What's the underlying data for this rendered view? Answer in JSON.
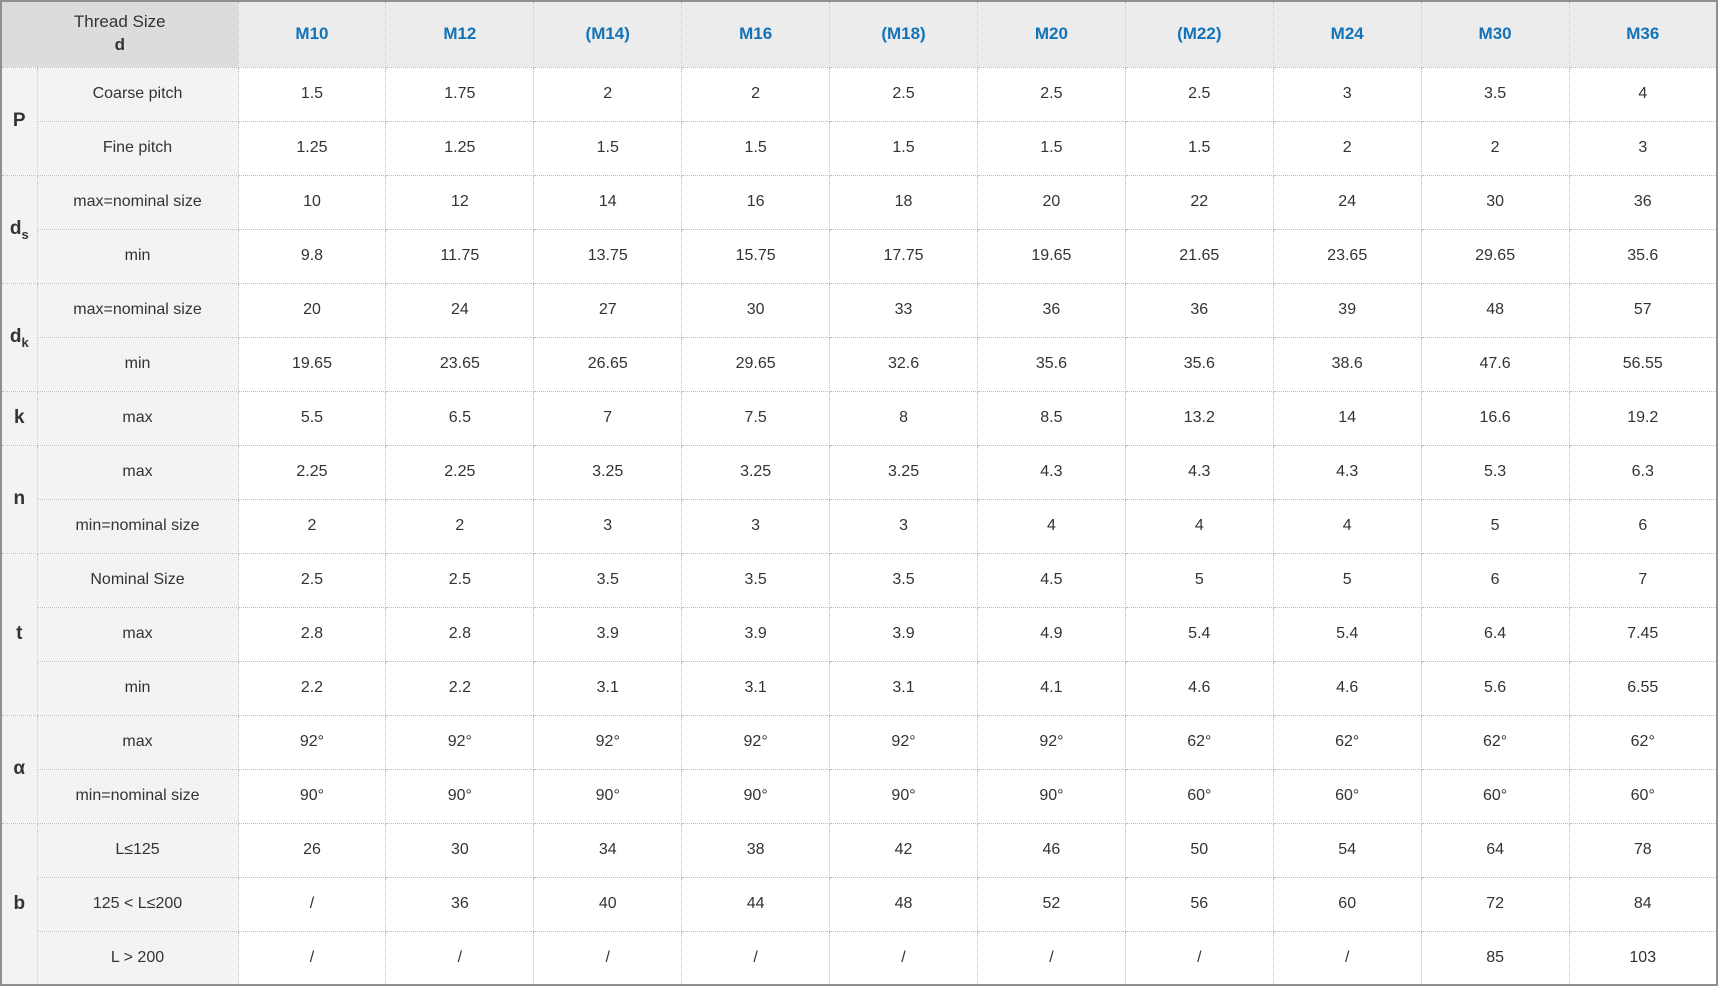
{
  "style": {
    "accent": "#1273b9",
    "header_bg": "#ececec",
    "corner_bg": "#dcdcdc",
    "label_bg": "#f3f3f3",
    "border_inner": "#bdbdbd",
    "border_outer": "#8f8f8f",
    "text": "#333333"
  },
  "chart_data": {
    "type": "table",
    "corner_header_line1": "Thread Size",
    "corner_header_line2": "d",
    "columns": [
      "M10",
      "M12",
      "(M14)",
      "M16",
      "(M18)",
      "M20",
      "(M22)",
      "M24",
      "M30",
      "M36"
    ],
    "row_groups": [
      {
        "id": "P",
        "symbol": "P",
        "symbol_sub": "",
        "rows": [
          {
            "label": "Coarse pitch",
            "values": [
              "1.5",
              "1.75",
              "2",
              "2",
              "2.5",
              "2.5",
              "2.5",
              "3",
              "3.5",
              "4"
            ]
          },
          {
            "label": "Fine pitch",
            "values": [
              "1.25",
              "1.25",
              "1.5",
              "1.5",
              "1.5",
              "1.5",
              "1.5",
              "2",
              "2",
              "3"
            ]
          }
        ]
      },
      {
        "id": "ds",
        "symbol": "d",
        "symbol_sub": "s",
        "rows": [
          {
            "label": "max=nominal size",
            "values": [
              "10",
              "12",
              "14",
              "16",
              "18",
              "20",
              "22",
              "24",
              "30",
              "36"
            ]
          },
          {
            "label": "min",
            "values": [
              "9.8",
              "11.75",
              "13.75",
              "15.75",
              "17.75",
              "19.65",
              "21.65",
              "23.65",
              "29.65",
              "35.6"
            ]
          }
        ]
      },
      {
        "id": "dk",
        "symbol": "d",
        "symbol_sub": "k",
        "rows": [
          {
            "label": "max=nominal size",
            "values": [
              "20",
              "24",
              "27",
              "30",
              "33",
              "36",
              "36",
              "39",
              "48",
              "57"
            ]
          },
          {
            "label": "min",
            "values": [
              "19.65",
              "23.65",
              "26.65",
              "29.65",
              "32.6",
              "35.6",
              "35.6",
              "38.6",
              "47.6",
              "56.55"
            ]
          }
        ]
      },
      {
        "id": "k",
        "symbol": "k",
        "symbol_sub": "",
        "rows": [
          {
            "label": "max",
            "values": [
              "5.5",
              "6.5",
              "7",
              "7.5",
              "8",
              "8.5",
              "13.2",
              "14",
              "16.6",
              "19.2"
            ]
          }
        ]
      },
      {
        "id": "n",
        "symbol": "n",
        "symbol_sub": "",
        "rows": [
          {
            "label": "max",
            "values": [
              "2.25",
              "2.25",
              "3.25",
              "3.25",
              "3.25",
              "4.3",
              "4.3",
              "4.3",
              "5.3",
              "6.3"
            ]
          },
          {
            "label": "min=nominal size",
            "values": [
              "2",
              "2",
              "3",
              "3",
              "3",
              "4",
              "4",
              "4",
              "5",
              "6"
            ]
          }
        ]
      },
      {
        "id": "t",
        "symbol": "t",
        "symbol_sub": "",
        "rows": [
          {
            "label": "Nominal Size",
            "values": [
              "2.5",
              "2.5",
              "3.5",
              "3.5",
              "3.5",
              "4.5",
              "5",
              "5",
              "6",
              "7"
            ]
          },
          {
            "label": "max",
            "values": [
              "2.8",
              "2.8",
              "3.9",
              "3.9",
              "3.9",
              "4.9",
              "5.4",
              "5.4",
              "6.4",
              "7.45"
            ]
          },
          {
            "label": "min",
            "values": [
              "2.2",
              "2.2",
              "3.1",
              "3.1",
              "3.1",
              "4.1",
              "4.6",
              "4.6",
              "5.6",
              "6.55"
            ]
          }
        ]
      },
      {
        "id": "alpha",
        "symbol": "α",
        "symbol_sub": "",
        "rows": [
          {
            "label": "max",
            "values": [
              "92°",
              "92°",
              "92°",
              "92°",
              "92°",
              "92°",
              "62°",
              "62°",
              "62°",
              "62°"
            ]
          },
          {
            "label": "min=nominal size",
            "values": [
              "90°",
              "90°",
              "90°",
              "90°",
              "90°",
              "90°",
              "60°",
              "60°",
              "60°",
              "60°"
            ]
          }
        ]
      },
      {
        "id": "b",
        "symbol": "b",
        "symbol_sub": "",
        "rows": [
          {
            "label": "L≤125",
            "values": [
              "26",
              "30",
              "34",
              "38",
              "42",
              "46",
              "50",
              "54",
              "64",
              "78"
            ]
          },
          {
            "label": "125 < L≤200",
            "values": [
              "/",
              "36",
              "40",
              "44",
              "48",
              "52",
              "56",
              "60",
              "72",
              "84"
            ]
          },
          {
            "label": "L > 200",
            "values": [
              "/",
              "/",
              "/",
              "/",
              "/",
              "/",
              "/",
              "/",
              "85",
              "103"
            ]
          }
        ]
      }
    ]
  }
}
